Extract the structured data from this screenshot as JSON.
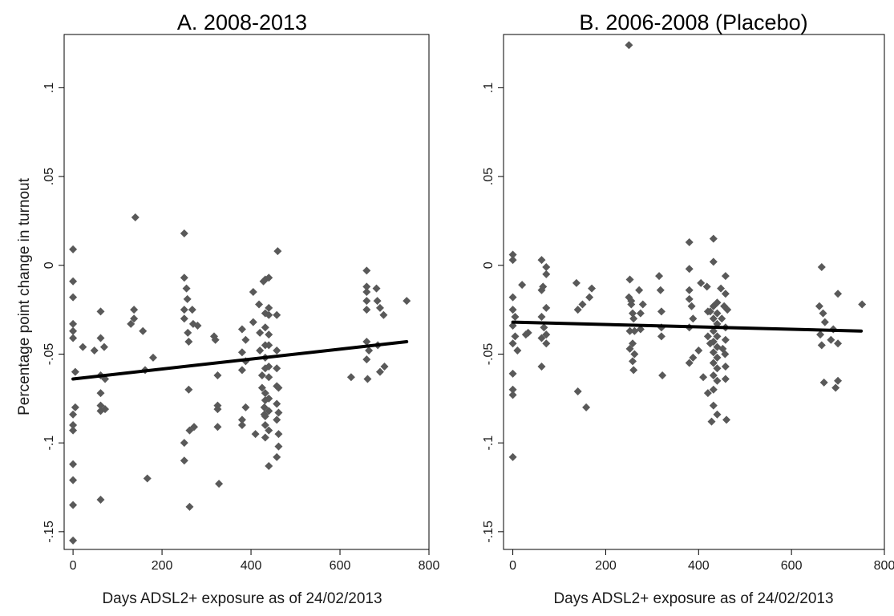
{
  "chart_data": [
    {
      "type": "scatter",
      "title": "A. 2008-2013",
      "xlabel": "Days ADSL2+ exposure as of 24/02/2013",
      "ylabel": "Percentage point change in turnout",
      "xlim": [
        -20,
        800
      ],
      "ylim": [
        -0.16,
        0.13
      ],
      "xticks": [
        "0",
        "200",
        "400",
        "600",
        "800"
      ],
      "yticks": [
        "-.15",
        "-.1",
        "-.05",
        "0",
        ".05",
        ".1"
      ],
      "ytick_values": [
        -0.15,
        -0.1,
        -0.05,
        0,
        0.05,
        0.1
      ],
      "grid": false,
      "marker_color": "#595959",
      "fit_color": "#000000",
      "fit_line": {
        "x": [
          0,
          750
        ],
        "y": [
          -0.064,
          -0.043
        ]
      },
      "points": [
        [
          0,
          0.009
        ],
        [
          0,
          -0.009
        ],
        [
          0,
          -0.018
        ],
        [
          0,
          -0.033
        ],
        [
          0,
          -0.037
        ],
        [
          0,
          -0.041
        ],
        [
          0,
          -0.084
        ],
        [
          0,
          -0.09
        ],
        [
          0,
          -0.093
        ],
        [
          0,
          -0.112
        ],
        [
          0,
          -0.121
        ],
        [
          0,
          -0.135
        ],
        [
          0,
          -0.155
        ],
        [
          5,
          -0.06
        ],
        [
          5,
          -0.08
        ],
        [
          22,
          -0.046
        ],
        [
          48,
          -0.048
        ],
        [
          62,
          -0.026
        ],
        [
          62,
          -0.041
        ],
        [
          62,
          -0.062
        ],
        [
          62,
          -0.072
        ],
        [
          62,
          -0.079
        ],
        [
          62,
          -0.082
        ],
        [
          62,
          -0.132
        ],
        [
          70,
          -0.046
        ],
        [
          72,
          -0.064
        ],
        [
          72,
          -0.081
        ],
        [
          130,
          -0.033
        ],
        [
          137,
          -0.025
        ],
        [
          137,
          -0.03
        ],
        [
          140,
          0.027
        ],
        [
          157,
          -0.037
        ],
        [
          162,
          -0.059
        ],
        [
          167,
          -0.12
        ],
        [
          180,
          -0.052
        ],
        [
          250,
          0.018
        ],
        [
          250,
          -0.007
        ],
        [
          250,
          -0.025
        ],
        [
          250,
          -0.03
        ],
        [
          250,
          -0.1
        ],
        [
          250,
          -0.11
        ],
        [
          255,
          -0.013
        ],
        [
          257,
          -0.019
        ],
        [
          258,
          -0.038
        ],
        [
          260,
          -0.043
        ],
        [
          260,
          -0.07
        ],
        [
          262,
          -0.093
        ],
        [
          262,
          -0.136
        ],
        [
          268,
          -0.025
        ],
        [
          270,
          -0.033
        ],
        [
          272,
          -0.091
        ],
        [
          280,
          -0.034
        ],
        [
          317,
          -0.04
        ],
        [
          320,
          -0.042
        ],
        [
          325,
          -0.062
        ],
        [
          325,
          -0.079
        ],
        [
          325,
          -0.091
        ],
        [
          325,
          -0.081
        ],
        [
          328,
          -0.123
        ],
        [
          380,
          -0.036
        ],
        [
          380,
          -0.049
        ],
        [
          380,
          -0.059
        ],
        [
          380,
          -0.087
        ],
        [
          380,
          -0.09
        ],
        [
          388,
          -0.042
        ],
        [
          388,
          -0.054
        ],
        [
          388,
          -0.08
        ],
        [
          405,
          -0.015
        ],
        [
          405,
          -0.032
        ],
        [
          410,
          -0.095
        ],
        [
          418,
          -0.022
        ],
        [
          420,
          -0.038
        ],
        [
          420,
          -0.048
        ],
        [
          425,
          -0.062
        ],
        [
          425,
          -0.069
        ],
        [
          428,
          -0.009
        ],
        [
          430,
          -0.08
        ],
        [
          430,
          -0.084
        ],
        [
          432,
          -0.008
        ],
        [
          432,
          -0.027
        ],
        [
          432,
          -0.035
        ],
        [
          432,
          -0.045
        ],
        [
          432,
          -0.052
        ],
        [
          432,
          -0.058
        ],
        [
          432,
          -0.072
        ],
        [
          432,
          -0.076
        ],
        [
          432,
          -0.085
        ],
        [
          432,
          -0.09
        ],
        [
          432,
          -0.097
        ],
        [
          440,
          -0.007
        ],
        [
          440,
          -0.024
        ],
        [
          440,
          -0.028
        ],
        [
          440,
          -0.039
        ],
        [
          440,
          -0.045
        ],
        [
          440,
          -0.057
        ],
        [
          440,
          -0.063
        ],
        [
          440,
          -0.075
        ],
        [
          440,
          -0.082
        ],
        [
          440,
          -0.093
        ],
        [
          440,
          -0.113
        ],
        [
          458,
          -0.028
        ],
        [
          458,
          -0.048
        ],
        [
          458,
          -0.058
        ],
        [
          458,
          -0.068
        ],
        [
          458,
          -0.078
        ],
        [
          458,
          -0.087
        ],
        [
          458,
          -0.108
        ],
        [
          460,
          0.008
        ],
        [
          462,
          -0.069
        ],
        [
          462,
          -0.083
        ],
        [
          462,
          -0.095
        ],
        [
          462,
          -0.102
        ],
        [
          625,
          -0.063
        ],
        [
          660,
          -0.003
        ],
        [
          660,
          -0.012
        ],
        [
          660,
          -0.015
        ],
        [
          660,
          -0.02
        ],
        [
          660,
          -0.025
        ],
        [
          660,
          -0.043
        ],
        [
          660,
          -0.053
        ],
        [
          662,
          -0.064
        ],
        [
          665,
          -0.048
        ],
        [
          682,
          -0.013
        ],
        [
          684,
          -0.02
        ],
        [
          685,
          -0.045
        ],
        [
          690,
          -0.024
        ],
        [
          690,
          -0.06
        ],
        [
          698,
          -0.028
        ],
        [
          700,
          -0.057
        ],
        [
          750,
          -0.02
        ]
      ]
    },
    {
      "type": "scatter",
      "title": "B. 2006-2008 (Placebo)",
      "xlabel": "Days ADSL2+ exposure as of 24/02/2013",
      "ylabel": "",
      "xlim": [
        -20,
        800
      ],
      "ylim": [
        -0.16,
        0.13
      ],
      "xticks": [
        "0",
        "200",
        "400",
        "600",
        "800"
      ],
      "yticks": [
        "-.15",
        "-.1",
        "-.05",
        "0",
        ".05",
        ".1"
      ],
      "ytick_values": [
        -0.15,
        -0.1,
        -0.05,
        0,
        0.05,
        0.1
      ],
      "grid": false,
      "marker_color": "#595959",
      "fit_color": "#000000",
      "fit_line": {
        "x": [
          0,
          750
        ],
        "y": [
          -0.032,
          -0.037
        ]
      },
      "points": [
        [
          0,
          0.006
        ],
        [
          0,
          0.003
        ],
        [
          0,
          -0.018
        ],
        [
          0,
          -0.025
        ],
        [
          0,
          -0.034
        ],
        [
          0,
          -0.044
        ],
        [
          0,
          -0.061
        ],
        [
          0,
          -0.07
        ],
        [
          0,
          -0.073
        ],
        [
          0,
          -0.108
        ],
        [
          5,
          -0.029
        ],
        [
          5,
          -0.04
        ],
        [
          10,
          -0.048
        ],
        [
          20,
          -0.011
        ],
        [
          28,
          -0.039
        ],
        [
          33,
          -0.038
        ],
        [
          62,
          0.003
        ],
        [
          62,
          -0.014
        ],
        [
          62,
          -0.029
        ],
        [
          62,
          -0.041
        ],
        [
          62,
          -0.057
        ],
        [
          65,
          -0.012
        ],
        [
          67,
          -0.035
        ],
        [
          72,
          -0.001
        ],
        [
          72,
          -0.005
        ],
        [
          72,
          -0.024
        ],
        [
          72,
          -0.039
        ],
        [
          72,
          -0.044
        ],
        [
          137,
          -0.01
        ],
        [
          140,
          -0.025
        ],
        [
          140,
          -0.071
        ],
        [
          150,
          -0.022
        ],
        [
          158,
          -0.08
        ],
        [
          165,
          -0.018
        ],
        [
          170,
          -0.013
        ],
        [
          250,
          0.124
        ],
        [
          250,
          -0.018
        ],
        [
          252,
          -0.008
        ],
        [
          252,
          -0.037
        ],
        [
          252,
          -0.047
        ],
        [
          255,
          -0.02
        ],
        [
          255,
          -0.022
        ],
        [
          258,
          -0.027
        ],
        [
          258,
          -0.044
        ],
        [
          258,
          -0.054
        ],
        [
          260,
          -0.03
        ],
        [
          260,
          -0.059
        ],
        [
          262,
          -0.037
        ],
        [
          262,
          -0.05
        ],
        [
          272,
          -0.014
        ],
        [
          275,
          -0.027
        ],
        [
          275,
          -0.036
        ],
        [
          280,
          -0.022
        ],
        [
          315,
          -0.006
        ],
        [
          318,
          -0.014
        ],
        [
          320,
          -0.026
        ],
        [
          320,
          -0.035
        ],
        [
          320,
          -0.04
        ],
        [
          322,
          -0.062
        ],
        [
          380,
          0.013
        ],
        [
          380,
          -0.002
        ],
        [
          380,
          -0.014
        ],
        [
          380,
          -0.019
        ],
        [
          380,
          -0.035
        ],
        [
          380,
          -0.055
        ],
        [
          385,
          -0.023
        ],
        [
          388,
          -0.03
        ],
        [
          388,
          -0.052
        ],
        [
          400,
          -0.048
        ],
        [
          405,
          -0.01
        ],
        [
          410,
          -0.063
        ],
        [
          418,
          -0.012
        ],
        [
          420,
          -0.026
        ],
        [
          420,
          -0.04
        ],
        [
          420,
          -0.072
        ],
        [
          425,
          -0.026
        ],
        [
          425,
          -0.044
        ],
        [
          428,
          -0.088
        ],
        [
          432,
          0.015
        ],
        [
          432,
          0.002
        ],
        [
          432,
          -0.023
        ],
        [
          432,
          -0.03
        ],
        [
          432,
          -0.037
        ],
        [
          432,
          -0.043
        ],
        [
          432,
          -0.049
        ],
        [
          432,
          -0.055
        ],
        [
          432,
          -0.062
        ],
        [
          432,
          -0.07
        ],
        [
          432,
          -0.079
        ],
        [
          440,
          -0.021
        ],
        [
          440,
          -0.027
        ],
        [
          440,
          -0.033
        ],
        [
          440,
          -0.04
        ],
        [
          440,
          -0.046
        ],
        [
          440,
          -0.052
        ],
        [
          440,
          -0.058
        ],
        [
          440,
          -0.065
        ],
        [
          440,
          -0.084
        ],
        [
          448,
          -0.013
        ],
        [
          450,
          -0.03
        ],
        [
          452,
          -0.047
        ],
        [
          455,
          -0.023
        ],
        [
          457,
          -0.05
        ],
        [
          458,
          -0.006
        ],
        [
          458,
          -0.016
        ],
        [
          458,
          -0.035
        ],
        [
          458,
          -0.042
        ],
        [
          458,
          -0.057
        ],
        [
          458,
          -0.064
        ],
        [
          460,
          -0.087
        ],
        [
          462,
          -0.025
        ],
        [
          660,
          -0.023
        ],
        [
          662,
          -0.039
        ],
        [
          665,
          -0.001
        ],
        [
          665,
          -0.045
        ],
        [
          668,
          -0.027
        ],
        [
          670,
          -0.066
        ],
        [
          672,
          -0.032
        ],
        [
          685,
          -0.042
        ],
        [
          690,
          -0.036
        ],
        [
          695,
          -0.069
        ],
        [
          700,
          -0.016
        ],
        [
          700,
          -0.065
        ],
        [
          700,
          -0.044
        ],
        [
          752,
          -0.022
        ]
      ]
    }
  ]
}
